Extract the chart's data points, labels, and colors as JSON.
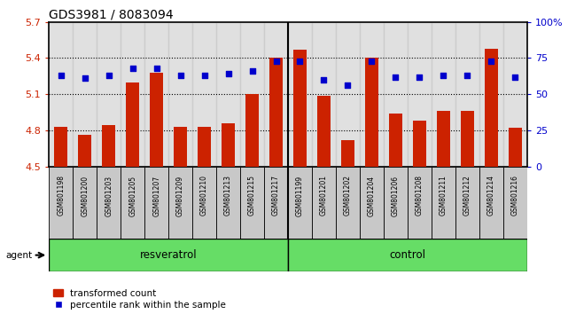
{
  "title": "GDS3981 / 8083094",
  "samples": [
    "GSM801198",
    "GSM801200",
    "GSM801203",
    "GSM801205",
    "GSM801207",
    "GSM801209",
    "GSM801210",
    "GSM801213",
    "GSM801215",
    "GSM801217",
    "GSM801199",
    "GSM801201",
    "GSM801202",
    "GSM801204",
    "GSM801206",
    "GSM801208",
    "GSM801211",
    "GSM801212",
    "GSM801214",
    "GSM801216"
  ],
  "bar_values": [
    4.83,
    4.76,
    4.84,
    5.2,
    5.28,
    4.83,
    4.83,
    4.86,
    5.1,
    5.4,
    5.47,
    5.09,
    4.72,
    5.4,
    4.94,
    4.88,
    4.96,
    4.96,
    5.48,
    4.82
  ],
  "percentile_values": [
    63,
    61,
    63,
    68,
    68,
    63,
    63,
    64,
    66,
    73,
    73,
    60,
    56,
    73,
    62,
    62,
    63,
    63,
    73,
    62
  ],
  "bar_bottom": 4.5,
  "ylim_left": [
    4.5,
    5.7
  ],
  "ylim_right": [
    0,
    100
  ],
  "yticks_left": [
    4.5,
    4.8,
    5.1,
    5.4,
    5.7
  ],
  "ytick_labels_left": [
    "4.5",
    "4.8",
    "5.1",
    "5.4",
    "5.7"
  ],
  "yticks_right": [
    0,
    25,
    50,
    75,
    100
  ],
  "ytick_labels_right": [
    "0",
    "25",
    "50",
    "75",
    "100%"
  ],
  "bar_color": "#cc2200",
  "dot_color": "#0000cc",
  "n_resveratrol": 10,
  "n_control": 10,
  "resveratrol_label": "resveratrol",
  "control_label": "control",
  "agent_label": "agent",
  "legend_bar_label": "transformed count",
  "legend_dot_label": "percentile rank within the sample",
  "sample_bg_color": "#c8c8c8",
  "group_bg_color": "#66dd66",
  "grid_yticks": [
    4.8,
    5.1,
    5.4
  ],
  "title_fontsize": 10,
  "n_samples": 20
}
